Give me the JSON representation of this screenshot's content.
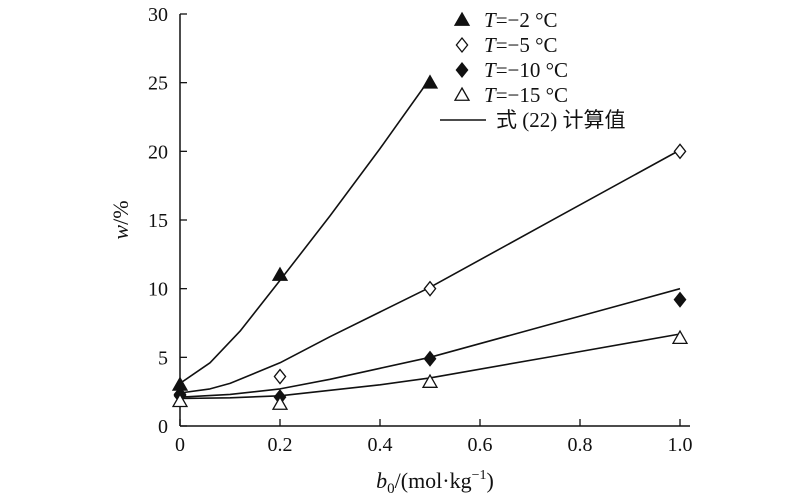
{
  "chart_data": {
    "type": "scatter",
    "xlabel": {
      "main": "b",
      "sub": "0",
      "rest": "/(mol·kg",
      "sup": "−1",
      "close": ")"
    },
    "ylabel": {
      "var": "w",
      "unit": "/%"
    },
    "xlim": [
      0,
      1.0
    ],
    "ylim": [
      0,
      30
    ],
    "xticks": [
      0,
      0.2,
      0.4,
      0.6,
      0.8,
      1.0
    ],
    "xtick_labels": [
      "0",
      "0.2",
      "0.4",
      "0.6",
      "0.8",
      "1.0"
    ],
    "yticks": [
      0,
      5,
      10,
      15,
      20,
      25,
      30
    ],
    "ytick_labels": [
      "0",
      "5",
      "10",
      "15",
      "20",
      "25",
      "30"
    ],
    "legend_placement": "top-right",
    "series": [
      {
        "name": "T=−2 °C",
        "label_var": "T",
        "label_rest": "=−2 °C",
        "marker": "triangle-filled",
        "points": [
          {
            "x": 0,
            "y": 3.0
          },
          {
            "x": 0.2,
            "y": 11.0
          },
          {
            "x": 0.5,
            "y": 25.0
          }
        ]
      },
      {
        "name": "T=−5 °C",
        "label_var": "T",
        "label_rest": "=−5 °C",
        "marker": "diamond-open",
        "points": [
          {
            "x": 0,
            "y": 2.3
          },
          {
            "x": 0.2,
            "y": 3.6
          },
          {
            "x": 0.5,
            "y": 10.0
          },
          {
            "x": 1.0,
            "y": 20.0
          }
        ]
      },
      {
        "name": "T=−10 °C",
        "label_var": "T",
        "label_rest": "=−10 °C",
        "marker": "diamond-filled",
        "points": [
          {
            "x": 0,
            "y": 2.2
          },
          {
            "x": 0.2,
            "y": 2.1
          },
          {
            "x": 0.5,
            "y": 4.9
          },
          {
            "x": 1.0,
            "y": 9.2
          }
        ]
      },
      {
        "name": "T=−15 °C",
        "label_var": "T",
        "label_rest": "=−15 °C",
        "marker": "triangle-open",
        "points": [
          {
            "x": 0,
            "y": 1.8
          },
          {
            "x": 0.2,
            "y": 1.6
          },
          {
            "x": 0.5,
            "y": 3.2
          },
          {
            "x": 1.0,
            "y": 6.4
          }
        ]
      }
    ],
    "fit_curves": [
      {
        "name": "式 (22) 计算值",
        "series": "T=−2 °C",
        "points": [
          {
            "x": 0,
            "y": 3.1
          },
          {
            "x": 0.06,
            "y": 4.6
          },
          {
            "x": 0.12,
            "y": 6.9
          },
          {
            "x": 0.2,
            "y": 10.6
          },
          {
            "x": 0.3,
            "y": 15.3
          },
          {
            "x": 0.4,
            "y": 20.2
          },
          {
            "x": 0.5,
            "y": 25.3
          }
        ]
      },
      {
        "name": "式 (22) 计算值",
        "series": "T=−5 °C",
        "points": [
          {
            "x": 0,
            "y": 2.4
          },
          {
            "x": 0.06,
            "y": 2.7
          },
          {
            "x": 0.1,
            "y": 3.1
          },
          {
            "x": 0.2,
            "y": 4.6
          },
          {
            "x": 0.3,
            "y": 6.5
          },
          {
            "x": 0.4,
            "y": 8.3
          },
          {
            "x": 0.5,
            "y": 10.1
          },
          {
            "x": 0.75,
            "y": 15.1
          },
          {
            "x": 1.0,
            "y": 20.1
          }
        ]
      },
      {
        "name": "式 (22) 计算值",
        "series": "T=−10 °C",
        "points": [
          {
            "x": 0,
            "y": 2.1
          },
          {
            "x": 0.1,
            "y": 2.3
          },
          {
            "x": 0.2,
            "y": 2.7
          },
          {
            "x": 0.3,
            "y": 3.4
          },
          {
            "x": 0.4,
            "y": 4.2
          },
          {
            "x": 0.5,
            "y": 5.0
          },
          {
            "x": 0.75,
            "y": 7.5
          },
          {
            "x": 1.0,
            "y": 10.0
          }
        ]
      },
      {
        "name": "式 (22) 计算值",
        "series": "T=−15 °C",
        "points": [
          {
            "x": 0,
            "y": 2.0
          },
          {
            "x": 0.1,
            "y": 2.05
          },
          {
            "x": 0.2,
            "y": 2.2
          },
          {
            "x": 0.3,
            "y": 2.6
          },
          {
            "x": 0.4,
            "y": 3.0
          },
          {
            "x": 0.5,
            "y": 3.5
          },
          {
            "x": 0.75,
            "y": 5.1
          },
          {
            "x": 1.0,
            "y": 6.7
          }
        ]
      }
    ],
    "legend": {
      "entries": [
        {
          "kind": "marker",
          "marker": "triangle-filled",
          "label_var": "T",
          "label_rest": "=−2 °C"
        },
        {
          "kind": "marker",
          "marker": "diamond-open",
          "label_var": "T",
          "label_rest": "=−5 °C"
        },
        {
          "kind": "marker",
          "marker": "diamond-filled",
          "label_var": "T",
          "label_rest": "=−10 °C"
        },
        {
          "kind": "marker",
          "marker": "triangle-open",
          "label_var": "T",
          "label_rest": "=−15 °C"
        },
        {
          "kind": "line",
          "label_var": "",
          "label_rest": "式 (22) 计算值"
        }
      ]
    },
    "colors": {
      "ink": "#111111",
      "background": "#ffffff"
    }
  }
}
